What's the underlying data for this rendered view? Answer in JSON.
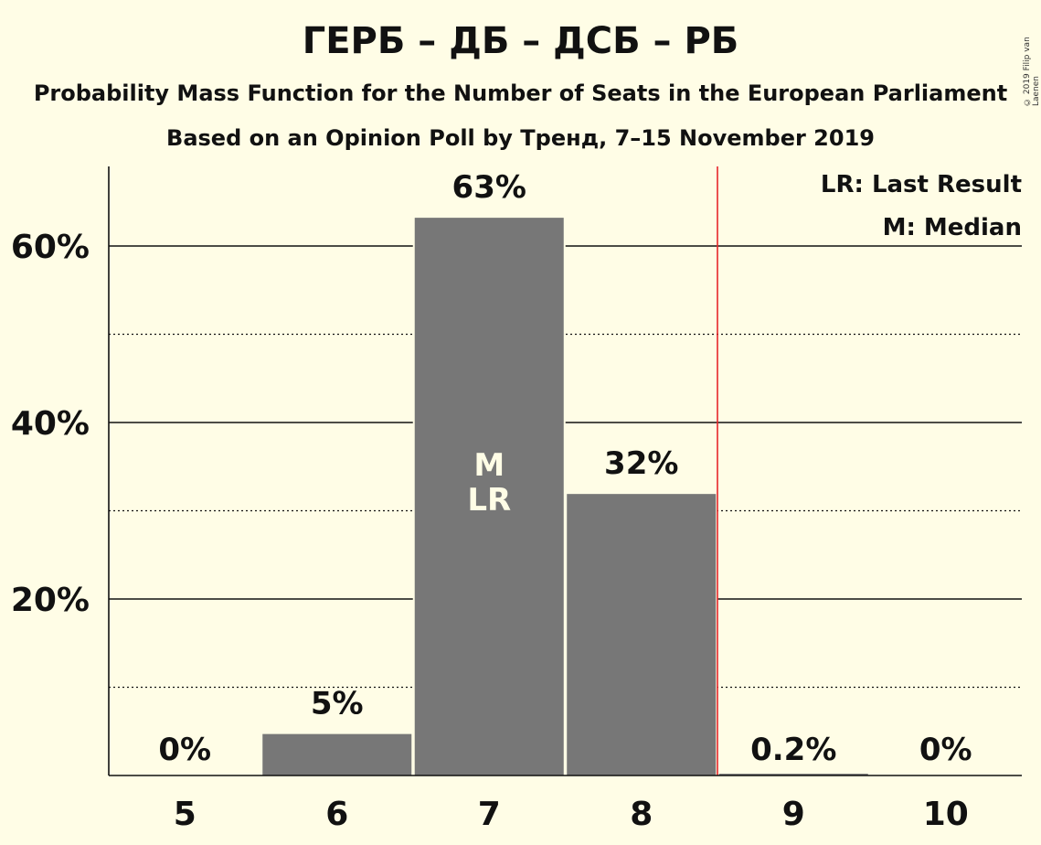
{
  "title": "ГЕРБ – ДБ – ДСБ – РБ",
  "subtitle": "Probability Mass Function for the Number of Seats in the European Parliament",
  "subtitle2": "Based on an Opinion Poll by Тренд, 7–15 November 2019",
  "copyright": "© 2019 Filip van Laenen",
  "colors": {
    "background": "#FFFDE6",
    "bar": "#777777",
    "last_result_line": "#E8262A",
    "bar_label_inside": "#FFFDE6"
  },
  "chart_data": {
    "type": "bar",
    "categories": [
      "5",
      "6",
      "7",
      "8",
      "9",
      "10"
    ],
    "values": [
      0,
      4.7,
      63.2,
      31.9,
      0.2,
      0
    ],
    "value_labels": [
      "0%",
      "5%",
      "63%",
      "32%",
      "0.2%",
      "0%"
    ],
    "ylim": [
      0,
      69
    ],
    "yticks_major": [
      20,
      40,
      60
    ],
    "ytick_labels": [
      "20%",
      "40%",
      "60%"
    ],
    "yticks_minor": [
      10,
      30,
      50
    ],
    "median_category": "7",
    "last_result_category": "7",
    "last_result_line_after": "8",
    "in_bar_labels": [
      "M",
      "LR"
    ],
    "legend": [
      "LR: Last Result",
      "M: Median"
    ],
    "legend_position": "top-right",
    "grid": true
  }
}
